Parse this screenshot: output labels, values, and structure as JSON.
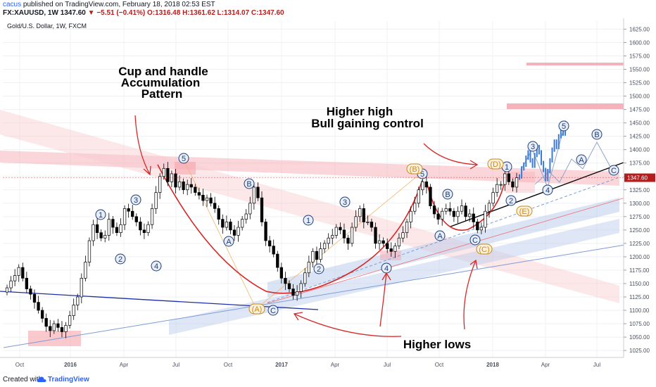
{
  "header": {
    "author": "cacus",
    "published": "published on TradingView.com, February 18, 2018 02:53 EST",
    "symbol": "FX:XAUUSD, 1W",
    "last": "1347.60",
    "change": "−5.51 (−0.41%)",
    "ohlc": "O:1316.48 H:1361.62 L:1314.07 C:1347.60"
  },
  "footer": {
    "created_with": "Created with",
    "brand": "TradingView"
  },
  "chart_data": {
    "type": "candlestick",
    "title": "Gold/U.S. Dollar, 1W, FXCM",
    "x_ticks": [
      "Oct",
      "2016",
      "Apr",
      "Jul",
      "Oct",
      "2017",
      "Apr",
      "Jul",
      "Oct",
      "2018",
      "Apr",
      "Jul"
    ],
    "y_ticks": [
      "1625.00",
      "1600.00",
      "1575.00",
      "1550.00",
      "1525.00",
      "1500.00",
      "1475.00",
      "1450.00",
      "1425.00",
      "1400.00",
      "1375.00",
      "1350.00",
      "1325.00",
      "1300.00",
      "1275.00",
      "1250.00",
      "1225.00",
      "1200.00",
      "1175.00",
      "1150.00",
      "1125.00",
      "1100.00",
      "1075.00",
      "1050.00",
      "1025.00"
    ],
    "ylim": [
      1012,
      1640
    ],
    "last_price": 1347.6,
    "closes": [
      1142,
      1155,
      1165,
      1180,
      1160,
      1140,
      1130,
      1115,
      1100,
      1085,
      1070,
      1062,
      1075,
      1068,
      1060,
      1072,
      1090,
      1110,
      1125,
      1160,
      1190,
      1230,
      1260,
      1245,
      1235,
      1240,
      1270,
      1255,
      1245,
      1260,
      1290,
      1285,
      1275,
      1265,
      1250,
      1245,
      1260,
      1290,
      1320,
      1350,
      1365,
      1340,
      1355,
      1330,
      1340,
      1325,
      1335,
      1330,
      1320,
      1315,
      1305,
      1310,
      1300,
      1290,
      1270,
      1255,
      1265,
      1250,
      1240,
      1255,
      1270,
      1280,
      1300,
      1330,
      1310,
      1265,
      1230,
      1220,
      1205,
      1180,
      1160,
      1150,
      1140,
      1128,
      1135,
      1150,
      1170,
      1190,
      1210,
      1195,
      1215,
      1225,
      1235,
      1240,
      1255,
      1250,
      1235,
      1225,
      1255,
      1275,
      1290,
      1265,
      1265,
      1255,
      1225,
      1230,
      1225,
      1215,
      1210,
      1220,
      1235,
      1245,
      1265,
      1285,
      1300,
      1325,
      1340,
      1330,
      1295,
      1280,
      1270,
      1285,
      1290,
      1285,
      1275,
      1285,
      1295,
      1275,
      1280,
      1265,
      1250,
      1255,
      1285,
      1300,
      1320,
      1335,
      1335,
      1355,
      1340,
      1330,
      1347.6
    ],
    "annotations": {
      "cup_and_handle": "Cup and handle",
      "accumulation": "Accumulation",
      "pattern": "Pattern",
      "higher_high": "Higher high",
      "bull": "Bull gaining control",
      "higher_lows": "Higher lows"
    },
    "wave_labels": {
      "w1a": "1",
      "w2a": "2",
      "w3a": "3",
      "w4a": "4",
      "w5a": "5",
      "wA1": "A",
      "wB1": "B",
      "wAa": "(A)",
      "wC1": "C",
      "w1b": "1",
      "w2b": "2",
      "w3b": "3",
      "w4b": "4",
      "w5b": "5",
      "wBb": "(B)",
      "wA2": "A",
      "wB2": "B",
      "wC2": "C",
      "wCc": "(C)",
      "wD": "(D)",
      "w1c": "1",
      "w2c": "2",
      "wE": "(E)",
      "w3c": "3",
      "w4c": "4",
      "w5c": "5",
      "wA3": "A",
      "wB3": "B",
      "wC3": "C"
    }
  }
}
